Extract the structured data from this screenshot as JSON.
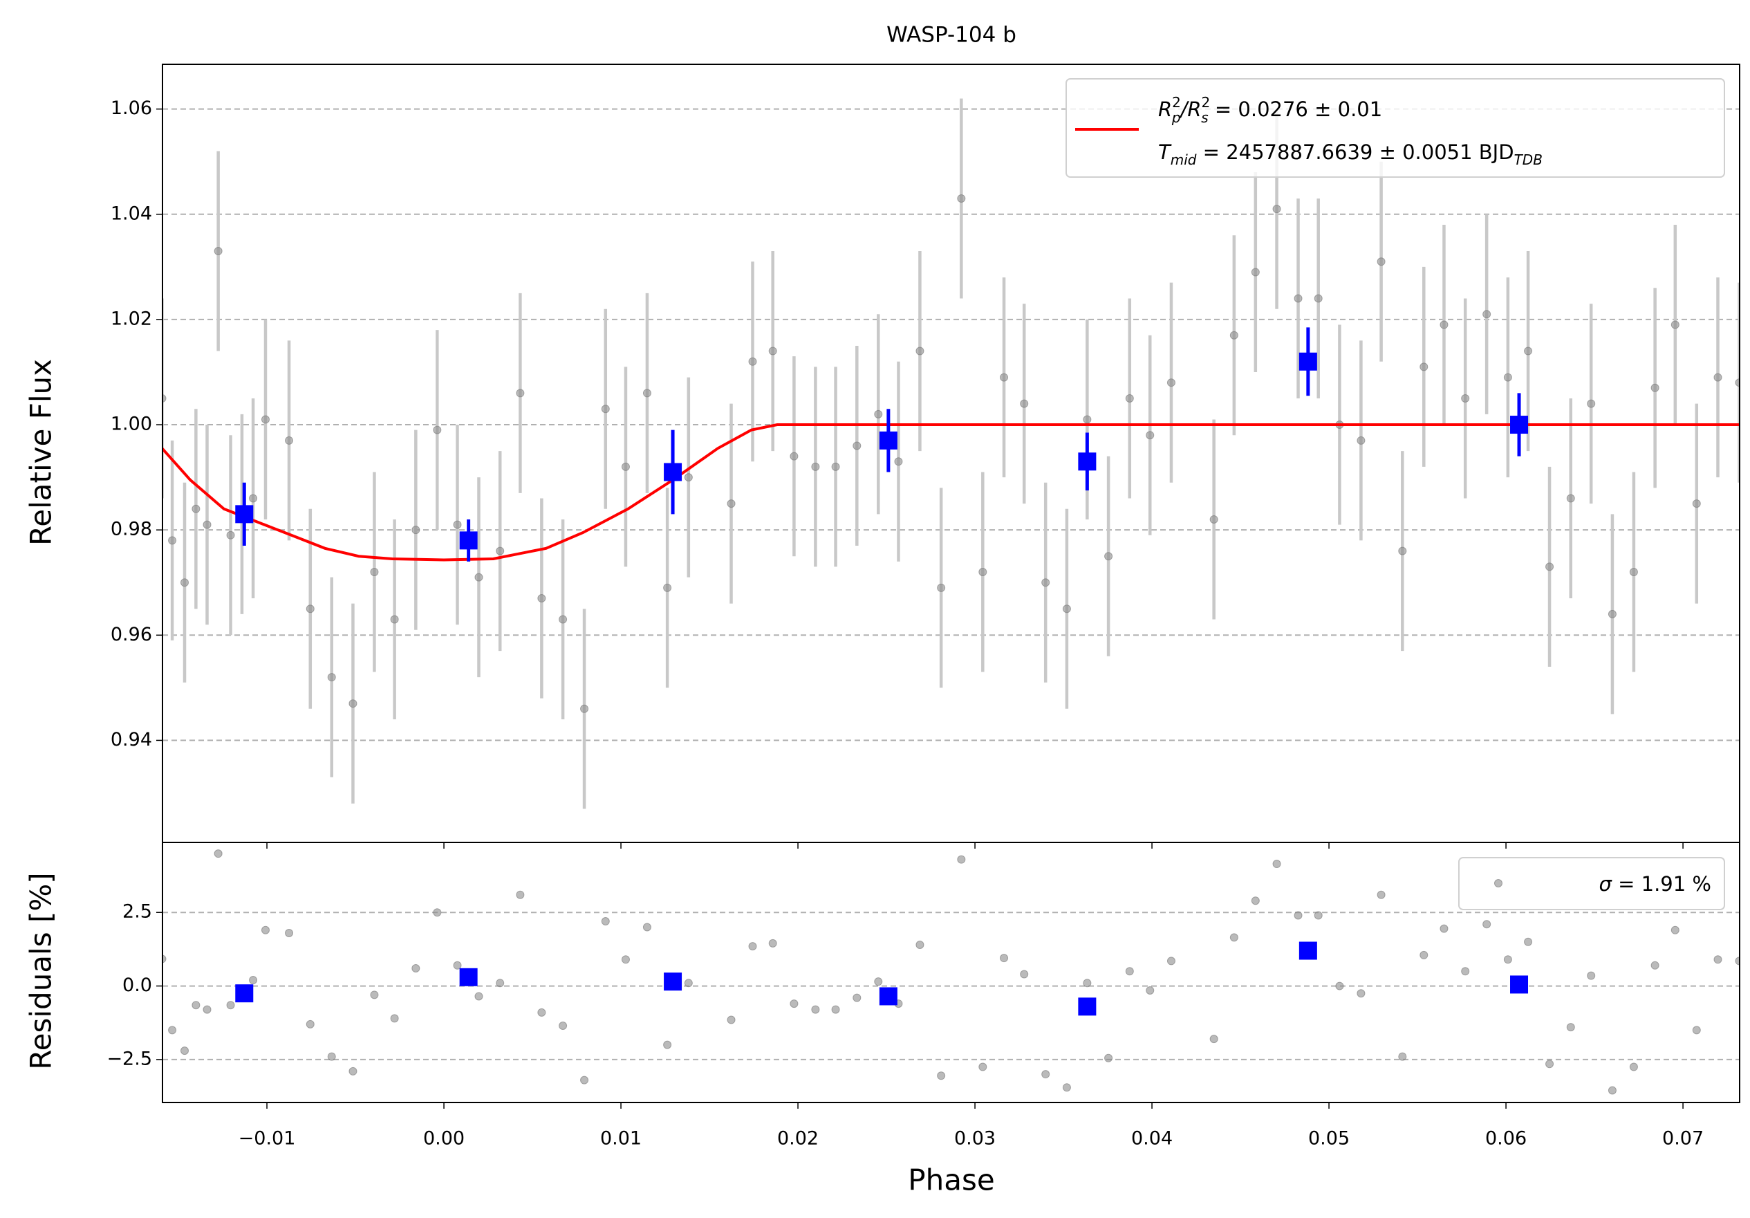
{
  "chart_data": [
    {
      "type": "scatter",
      "title": "WASP-104 b",
      "ylabel": "Relative Flux",
      "xlim": [
        -0.0159,
        0.0732
      ],
      "ylim": [
        0.9206,
        1.0685
      ],
      "yticks": [
        0.94,
        0.96,
        0.98,
        {
          "value": 1.0,
          "label": "1.00"
        },
        1.02,
        1.04,
        1.06
      ],
      "grid": true,
      "legend": "upper right",
      "series": [
        {
          "mode": "errorbar",
          "marker": "o",
          "color": "#8c8c8c",
          "ecolor": "#c8c8c8",
          "yerr": 0.019,
          "x": [
            -0.01592,
            -0.01535,
            -0.01465,
            -0.01401,
            -0.01338,
            -0.01275,
            -0.01205,
            -0.01141,
            -0.01078,
            -0.01008,
            -0.00875,
            -0.00755,
            -0.00634,
            -0.00514,
            -0.00393,
            -0.00279,
            -0.00159,
            -0.00038,
            0.00076,
            0.00197,
            0.00317,
            0.00431,
            0.00552,
            0.00672,
            0.00793,
            0.00913,
            0.01027,
            0.01148,
            0.01262,
            0.01382,
            0.01623,
            0.01744,
            0.01858,
            0.01978,
            0.02099,
            0.02213,
            0.02333,
            0.02454,
            0.02568,
            0.02689,
            0.02809,
            0.02923,
            0.03044,
            0.03164,
            0.03278,
            0.03399,
            0.03519,
            0.03634,
            0.03754,
            0.03874,
            0.03989,
            0.04109,
            0.0435,
            0.04464,
            0.04585,
            0.04705,
            0.04826,
            0.0494,
            0.0506,
            0.05181,
            0.05295,
            0.05415,
            0.05536,
            0.0565,
            0.0577,
            0.05891,
            0.06011,
            0.06125,
            0.06246,
            0.06366,
            0.06481,
            0.06601,
            0.06722,
            0.06842,
            0.06956,
            0.07077,
            0.07197,
            0.07318
          ],
          "values": [
            1.005,
            0.978,
            0.97,
            0.984,
            0.981,
            1.033,
            0.979,
            0.983,
            0.986,
            1.001,
            0.997,
            0.965,
            0.952,
            0.947,
            0.972,
            0.963,
            0.98,
            0.999,
            0.981,
            0.971,
            0.976,
            1.006,
            0.967,
            0.963,
            0.946,
            1.003,
            0.992,
            1.006,
            0.969,
            0.99,
            0.985,
            1.012,
            1.014,
            0.994,
            0.992,
            0.992,
            0.996,
            1.002,
            0.993,
            1.014,
            0.969,
            1.043,
            0.972,
            1.009,
            1.004,
            0.97,
            0.965,
            1.001,
            0.975,
            1.005,
            0.998,
            1.008,
            0.982,
            1.017,
            1.029,
            1.041,
            1.024,
            1.024,
            1.0,
            0.997,
            1.031,
            0.976,
            1.011,
            1.019,
            1.005,
            1.021,
            1.009,
            1.014,
            0.973,
            0.986,
            1.004,
            0.964,
            0.972,
            1.007,
            1.019,
            0.985,
            1.009,
            1.008
          ]
        },
        {
          "mode": "line",
          "color": "#ff0000",
          "name": [
            [
              "R",
              "2",
              "p",
              "/R",
              "2",
              "s",
              " = 0.0276 ± 0.01"
            ],
            [
              "T",
              "mid",
              " = 2457887.6639 ± 0.0051 BJD",
              "TDB"
            ]
          ],
          "x": [
            -0.01592,
            -0.01433,
            -0.01243,
            -0.01053,
            -0.00862,
            -0.00672,
            -0.00482,
            -0.00292,
            0,
            0.00279,
            0.00577,
            0.00786,
            0.0104,
            0.01293,
            0.01547,
            0.01737,
            0.01883,
            0.07318
          ],
          "values": [
            0.9955,
            0.9895,
            0.984,
            0.9815,
            0.979,
            0.9765,
            0.975,
            0.9745,
            0.9743,
            0.9745,
            0.9765,
            0.9795,
            0.984,
            0.9895,
            0.9955,
            0.999,
            1.0,
            1.0
          ]
        },
        {
          "mode": "errorbar",
          "marker": "s",
          "color": "#0000ff",
          "ecolor": "#0000ff",
          "x": [
            -0.01128,
            0.00139,
            0.01293,
            0.02511,
            0.03634,
            0.04882,
            0.06074
          ],
          "values": [
            0.983,
            0.978,
            0.991,
            0.997,
            0.993,
            1.012,
            1.0
          ],
          "yerr": [
            0.006,
            0.004,
            0.008,
            0.006,
            0.0055,
            0.0065,
            0.006
          ]
        }
      ]
    },
    {
      "type": "scatter",
      "ylabel": "Residuals [%]",
      "xlabel": "Phase",
      "xlim": [
        -0.0159,
        0.0732
      ],
      "ylim": [
        -3.96,
        4.88
      ],
      "xticks": [
        {
          "value": -0.01,
          "label": "−0.01"
        },
        {
          "value": 0,
          "label": "0.00"
        },
        0.01,
        0.02,
        0.03,
        0.04,
        0.05,
        0.06,
        0.07
      ],
      "yticks": [
        {
          "value": -2.5,
          "label": "−2.5"
        },
        {
          "value": 0,
          "label": "0.0"
        },
        2.5
      ],
      "grid": true,
      "legend": "upper right",
      "series": [
        {
          "mode": "scatter",
          "marker": "o",
          "color": "#8c8c8c",
          "name": [
            "σ",
            " = 1.91 %"
          ],
          "x": [
            -0.01592,
            -0.01535,
            -0.01465,
            -0.01401,
            -0.01338,
            -0.01275,
            -0.01205,
            -0.01141,
            -0.01078,
            -0.01008,
            -0.00875,
            -0.00755,
            -0.00634,
            -0.00514,
            -0.00393,
            -0.00279,
            -0.00159,
            -0.00038,
            0.00076,
            0.00197,
            0.00317,
            0.00431,
            0.00552,
            0.00672,
            0.00793,
            0.00913,
            0.01027,
            0.01148,
            0.01262,
            0.01382,
            0.01623,
            0.01744,
            0.01858,
            0.01978,
            0.02099,
            0.02213,
            0.02333,
            0.02454,
            0.02568,
            0.02689,
            0.02809,
            0.02923,
            0.03044,
            0.03164,
            0.03278,
            0.03399,
            0.03519,
            0.03634,
            0.03754,
            0.03874,
            0.03989,
            0.04109,
            0.0435,
            0.04464,
            0.04585,
            0.04705,
            0.04826,
            0.0494,
            0.0506,
            0.05181,
            0.05295,
            0.05415,
            0.05536,
            0.0565,
            0.0577,
            0.05891,
            0.06011,
            0.06125,
            0.06246,
            0.06366,
            0.06481,
            0.06601,
            0.06722,
            0.06842,
            0.06956,
            0.07077,
            0.07197,
            0.07318
          ],
          "values": [
            0.92,
            -1.5,
            -2.2,
            -0.65,
            -0.8,
            4.5,
            -0.65,
            -0.2,
            0.2,
            1.9,
            1.8,
            -1.3,
            -2.4,
            -2.9,
            -0.3,
            -1.1,
            0.6,
            2.5,
            0.7,
            -0.35,
            0.1,
            3.1,
            -0.9,
            -1.35,
            -3.2,
            2.2,
            0.9,
            2.0,
            -2.0,
            0.1,
            -1.15,
            1.35,
            1.45,
            -0.6,
            -0.8,
            -0.8,
            -0.4,
            0.15,
            -0.6,
            1.4,
            -3.05,
            4.3,
            -2.75,
            0.95,
            0.4,
            -3.0,
            -3.45,
            0.1,
            -2.45,
            0.5,
            -0.15,
            0.85,
            -1.8,
            1.65,
            2.9,
            4.15,
            2.4,
            2.4,
            0.0,
            -0.25,
            3.1,
            -2.4,
            1.05,
            1.95,
            0.5,
            2.1,
            0.9,
            1.5,
            -2.65,
            -1.4,
            0.35,
            -3.55,
            -2.75,
            0.7,
            1.9,
            -1.5,
            0.9,
            0.85
          ]
        },
        {
          "mode": "scatter",
          "marker": "s",
          "color": "#0000ff",
          "x": [
            -0.01128,
            0.00139,
            0.01293,
            0.02511,
            0.03634,
            0.04882,
            0.06074
          ],
          "values": [
            -0.25,
            0.3,
            0.15,
            -0.35,
            -0.7,
            1.2,
            0.05
          ]
        }
      ]
    }
  ]
}
